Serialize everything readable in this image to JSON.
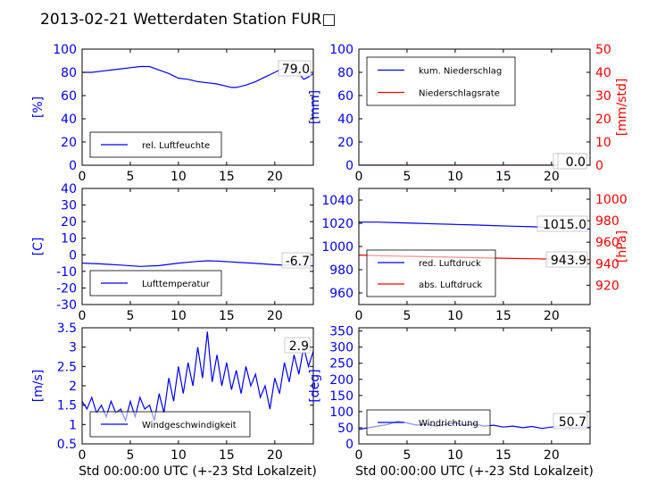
{
  "title": "2013-02-21 Wetterdaten Station FUR□",
  "colors": {
    "left": "#0000ff",
    "right": "#ff0000"
  },
  "chart_data": [
    {
      "type": "line",
      "id": "humidity",
      "xlim": [
        0,
        24
      ],
      "xticks": [
        0,
        5,
        10,
        15,
        20
      ],
      "ylim": [
        0,
        100
      ],
      "yticks": [
        0,
        20,
        40,
        60,
        80,
        100
      ],
      "ylabel": "[%]",
      "xlabel": "",
      "current_value": "79.0",
      "legend_loc": "lower-left",
      "series": [
        {
          "name": "rel. Luftfeuchte",
          "color": "#0000ff",
          "x": [
            0,
            1,
            2,
            3,
            4,
            5,
            6,
            6.5,
            7,
            8,
            9,
            10,
            11,
            12,
            13,
            14,
            15,
            15.5,
            16,
            17,
            18,
            19,
            20,
            21,
            22,
            22.5,
            23,
            23.5,
            24
          ],
          "y": [
            80,
            80,
            81,
            82,
            83,
            84,
            85,
            85,
            85,
            82,
            79,
            75,
            74,
            72,
            71,
            70,
            68,
            67,
            67,
            69,
            72,
            76,
            80,
            84,
            82,
            79,
            74,
            76,
            79
          ]
        }
      ]
    },
    {
      "type": "line",
      "id": "precipitation",
      "xlim": [
        0,
        24
      ],
      "xticks": [
        0,
        5,
        10,
        15,
        20
      ],
      "ylim": [
        0,
        100
      ],
      "yticks": [
        0,
        20,
        40,
        60,
        80,
        100
      ],
      "ylabel": "[mm]",
      "xlabel": "",
      "y2lim": [
        0,
        50
      ],
      "y2ticks": [
        0,
        10,
        20,
        30,
        40,
        50
      ],
      "y2label": "[mm/std]",
      "current_value": "0.0",
      "current_value_2": "0.0",
      "legend_loc": "upper-left",
      "series": [
        {
          "name": "kum. Niederschlag",
          "color": "#0000ff",
          "axis": "left",
          "x": [
            0,
            24
          ],
          "y": [
            0,
            0
          ]
        },
        {
          "name": "Niederschlagsrate",
          "color": "#ff0000",
          "axis": "right",
          "x": [
            0,
            24
          ],
          "y": [
            0,
            0
          ]
        }
      ]
    },
    {
      "type": "line",
      "id": "temperature",
      "xlim": [
        0,
        24
      ],
      "xticks": [
        0,
        5,
        10,
        15,
        20
      ],
      "ylim": [
        -30,
        40
      ],
      "yticks": [
        -30,
        -20,
        -10,
        0,
        10,
        20,
        30,
        40
      ],
      "ylabel": "[C]",
      "xlabel": "",
      "current_value": "-6.7",
      "legend_loc": "lower-left",
      "series": [
        {
          "name": "Lufttemperatur",
          "color": "#0000ff",
          "x": [
            0,
            2,
            4,
            6,
            8,
            10,
            12,
            13,
            14,
            16,
            18,
            20,
            22,
            24
          ],
          "y": [
            -5,
            -5.5,
            -6.2,
            -7,
            -6.5,
            -5,
            -4,
            -3.6,
            -3.8,
            -4.5,
            -5.2,
            -6,
            -6.5,
            -6.7
          ]
        }
      ]
    },
    {
      "type": "line",
      "id": "pressure",
      "xlim": [
        0,
        24
      ],
      "xticks": [
        0,
        5,
        10,
        15,
        20
      ],
      "ylim": [
        950,
        1050
      ],
      "yticks": [
        960,
        980,
        1000,
        1020,
        1040
      ],
      "ylabel": "",
      "y2lim": [
        902,
        1010
      ],
      "y2ticks": [
        920,
        940,
        960,
        980,
        1000
      ],
      "y2label": "[hPa]",
      "xlabel": "",
      "current_value": "1015.0",
      "current_value_2": "943.9",
      "legend_loc": "lower-left",
      "series": [
        {
          "name": "red. Luftdruck",
          "color": "#0000ff",
          "axis": "left",
          "x": [
            0,
            2,
            4,
            6,
            8,
            10,
            12,
            14,
            16,
            18,
            20,
            22,
            24
          ],
          "y": [
            1021,
            1021,
            1020.5,
            1020,
            1019.5,
            1019,
            1018.5,
            1018,
            1017.5,
            1017,
            1016.5,
            1016,
            1015
          ]
        },
        {
          "name": "abs. Luftdruck",
          "color": "#ff0000",
          "axis": "right",
          "x": [
            0,
            2,
            4,
            6,
            8,
            10,
            12,
            14,
            16,
            18,
            20,
            22,
            24
          ],
          "y": [
            948,
            947.5,
            947,
            946.8,
            946.4,
            946,
            945.6,
            945.2,
            944.9,
            944.6,
            944.3,
            944.1,
            943.9
          ]
        }
      ]
    },
    {
      "type": "line",
      "id": "windspeed",
      "xlim": [
        0,
        24
      ],
      "xticks": [
        0,
        5,
        10,
        15,
        20
      ],
      "ylim": [
        0.5,
        3.5
      ],
      "yticks": [
        0.5,
        1.0,
        1.5,
        2.0,
        2.5,
        3.0,
        3.5
      ],
      "ylabel": "[m/s]",
      "xlabel": "Std 00:00:00 UTC (+-23 Std Lokalzeit)",
      "current_value": "2.9",
      "legend_loc": "lower-left",
      "series": [
        {
          "name": "Windgeschwindigkeit",
          "color": "#0000ff",
          "x": [
            0,
            0.5,
            1,
            1.5,
            2,
            2.5,
            3,
            3.5,
            4,
            4.5,
            5,
            5.5,
            6,
            6.5,
            7,
            7.5,
            8,
            8.5,
            9,
            9.5,
            10,
            10.5,
            11,
            11.5,
            12,
            12.5,
            13,
            13.5,
            14,
            14.5,
            15,
            15.5,
            16,
            16.5,
            17,
            17.5,
            18,
            18.5,
            19,
            19.5,
            20,
            20.5,
            21,
            21.5,
            22,
            22.5,
            23,
            23.5,
            24
          ],
          "y": [
            1.6,
            1.4,
            1.7,
            1.3,
            1.5,
            1.2,
            1.6,
            1.3,
            1.4,
            1.1,
            1.6,
            1.2,
            1.7,
            1.4,
            1.5,
            1.1,
            1.8,
            1.3,
            2.2,
            1.6,
            2.5,
            1.8,
            2.6,
            2.0,
            3.0,
            2.2,
            3.4,
            2.1,
            2.8,
            2.0,
            2.6,
            1.9,
            2.4,
            1.8,
            2.5,
            2.0,
            2.3,
            1.7,
            2.0,
            1.4,
            2.2,
            1.8,
            2.6,
            2.1,
            2.8,
            2.3,
            3.0,
            2.5,
            2.9
          ]
        }
      ]
    },
    {
      "type": "line",
      "id": "winddirection",
      "xlim": [
        0,
        24
      ],
      "xticks": [
        0,
        5,
        10,
        15,
        20
      ],
      "ylim": [
        0,
        360
      ],
      "yticks": [
        0,
        50,
        100,
        150,
        200,
        250,
        300,
        350
      ],
      "ylabel": "[deg]",
      "xlabel": "Std 00:00:00 UTC (+-23 Std Lokalzeit)",
      "current_value": "50.7",
      "legend_loc": "lower-left",
      "series": [
        {
          "name": "Windrichtung",
          "color": "#0000ff",
          "x": [
            0,
            1,
            2,
            3,
            4,
            5,
            6,
            7,
            8,
            9,
            10,
            11,
            12,
            13,
            14,
            15,
            16,
            17,
            18,
            19,
            20,
            21,
            22,
            23,
            24
          ],
          "y": [
            45,
            50,
            55,
            60,
            70,
            65,
            58,
            62,
            55,
            60,
            65,
            58,
            62,
            55,
            58,
            52,
            55,
            50,
            54,
            48,
            52,
            56,
            50,
            53,
            51
          ]
        }
      ]
    }
  ]
}
